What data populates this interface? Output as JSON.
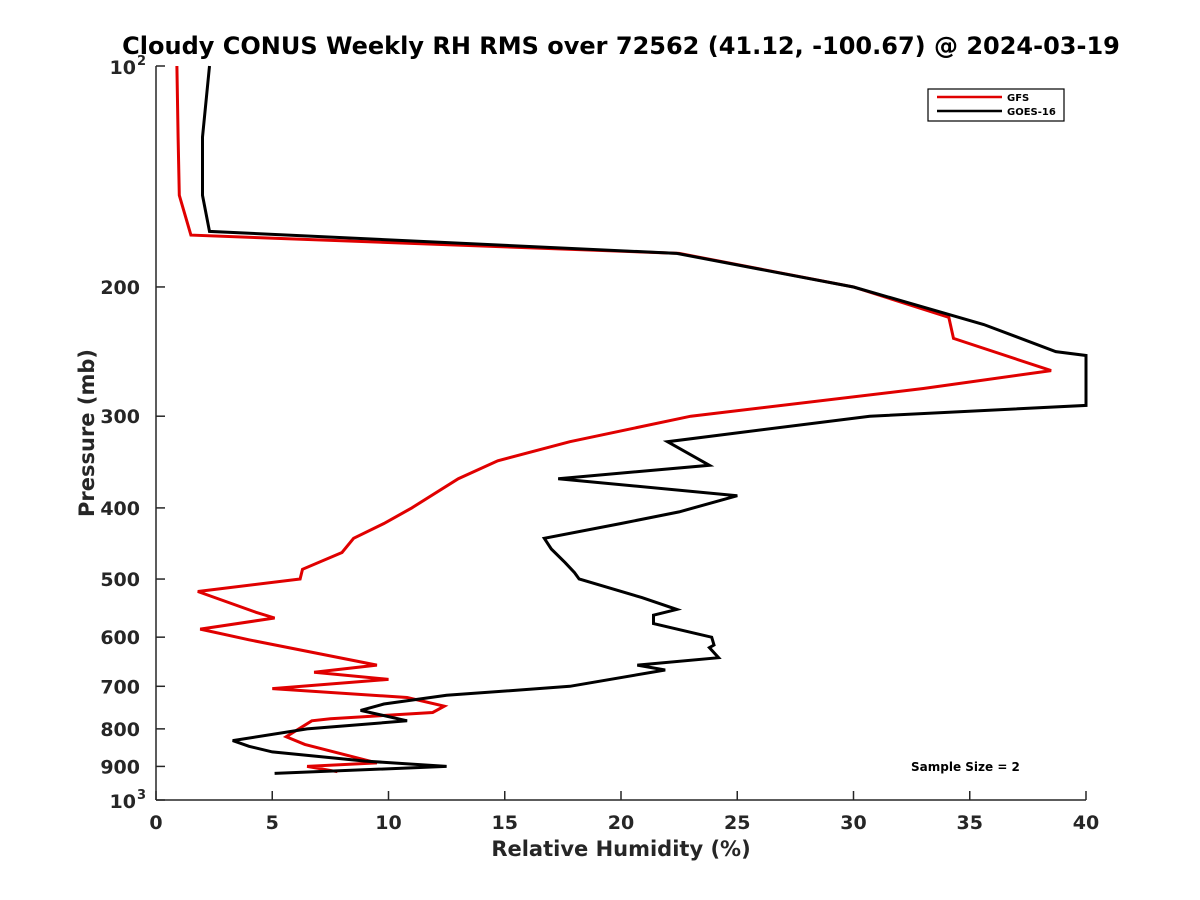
{
  "chart_data": {
    "type": "line",
    "title": "Cloudy CONUS Weekly RH RMS over 72562 (41.12, -100.67) @ 2024-03-19",
    "xlabel": "Relative Humidity (%)",
    "ylabel": "Pressure (mb)",
    "xlim": [
      0,
      40
    ],
    "ylim": [
      100,
      1000
    ],
    "y_scale": "log",
    "y_reversed": true,
    "x_ticks": [
      "0",
      "5",
      "10",
      "15",
      "20",
      "25",
      "30",
      "35",
      "40"
    ],
    "y_ticks": [
      {
        "value": 100,
        "base": "10",
        "exp": "2"
      },
      {
        "value": 200,
        "label": "200"
      },
      {
        "value": 300,
        "label": "300"
      },
      {
        "value": 400,
        "label": "400"
      },
      {
        "value": 500,
        "label": "500"
      },
      {
        "value": 600,
        "label": "600"
      },
      {
        "value": 700,
        "label": "700"
      },
      {
        "value": 800,
        "label": "800"
      },
      {
        "value": 900,
        "label": "900"
      },
      {
        "value": 1000,
        "base": "10",
        "exp": "3"
      }
    ],
    "legend_position": "top-right",
    "grid": false,
    "annotation": "Sample Size = 2",
    "series": [
      {
        "name": "GFS",
        "color": "#e00000",
        "points": [
          [
            0.9,
            100
          ],
          [
            0.95,
            125
          ],
          [
            1.0,
            150
          ],
          [
            1.5,
            170
          ],
          [
            22.5,
            180
          ],
          [
            30.0,
            200
          ],
          [
            34.1,
            220
          ],
          [
            34.3,
            235
          ],
          [
            38.5,
            260
          ],
          [
            33.0,
            275
          ],
          [
            23.0,
            300
          ],
          [
            17.8,
            325
          ],
          [
            14.7,
            345
          ],
          [
            13.0,
            365
          ],
          [
            11.0,
            400
          ],
          [
            9.8,
            420
          ],
          [
            8.5,
            440
          ],
          [
            8.0,
            460
          ],
          [
            6.3,
            485
          ],
          [
            6.2,
            500
          ],
          [
            1.8,
            520
          ],
          [
            4.3,
            555
          ],
          [
            5.1,
            565
          ],
          [
            1.9,
            585
          ],
          [
            4.0,
            605
          ],
          [
            9.5,
            655
          ],
          [
            6.8,
            670
          ],
          [
            10.0,
            685
          ],
          [
            5.0,
            705
          ],
          [
            10.8,
            725
          ],
          [
            12.4,
            745
          ],
          [
            11.9,
            760
          ],
          [
            7.5,
            775
          ],
          [
            6.7,
            780
          ],
          [
            5.6,
            820
          ],
          [
            6.4,
            840
          ],
          [
            9.5,
            890
          ],
          [
            6.5,
            900
          ],
          [
            7.8,
            915
          ]
        ]
      },
      {
        "name": "GOES-16",
        "color": "#000000",
        "points": [
          [
            2.3,
            100
          ],
          [
            2.0,
            125
          ],
          [
            2.0,
            150
          ],
          [
            2.3,
            168
          ],
          [
            22.4,
            180
          ],
          [
            30.0,
            200
          ],
          [
            35.6,
            225
          ],
          [
            38.7,
            245
          ],
          [
            40.0,
            248
          ],
          [
            40.0,
            290
          ],
          [
            30.7,
            300
          ],
          [
            22.0,
            325
          ],
          [
            23.8,
            350
          ],
          [
            17.3,
            365
          ],
          [
            25.0,
            385
          ],
          [
            22.5,
            405
          ],
          [
            20.0,
            420
          ],
          [
            16.7,
            440
          ],
          [
            17.0,
            455
          ],
          [
            17.6,
            475
          ],
          [
            18.0,
            490
          ],
          [
            18.2,
            500
          ],
          [
            20.9,
            530
          ],
          [
            22.4,
            550
          ],
          [
            21.4,
            560
          ],
          [
            21.4,
            575
          ],
          [
            23.9,
            600
          ],
          [
            24.0,
            615
          ],
          [
            23.8,
            620
          ],
          [
            24.2,
            640
          ],
          [
            20.7,
            655
          ],
          [
            21.9,
            665
          ],
          [
            17.8,
            700
          ],
          [
            12.5,
            720
          ],
          [
            9.8,
            740
          ],
          [
            8.8,
            755
          ],
          [
            10.8,
            780
          ],
          [
            6.5,
            800
          ],
          [
            3.3,
            830
          ],
          [
            4.0,
            845
          ],
          [
            5.0,
            860
          ],
          [
            9.0,
            885
          ],
          [
            12.5,
            900
          ],
          [
            5.1,
            920
          ]
        ]
      }
    ]
  }
}
